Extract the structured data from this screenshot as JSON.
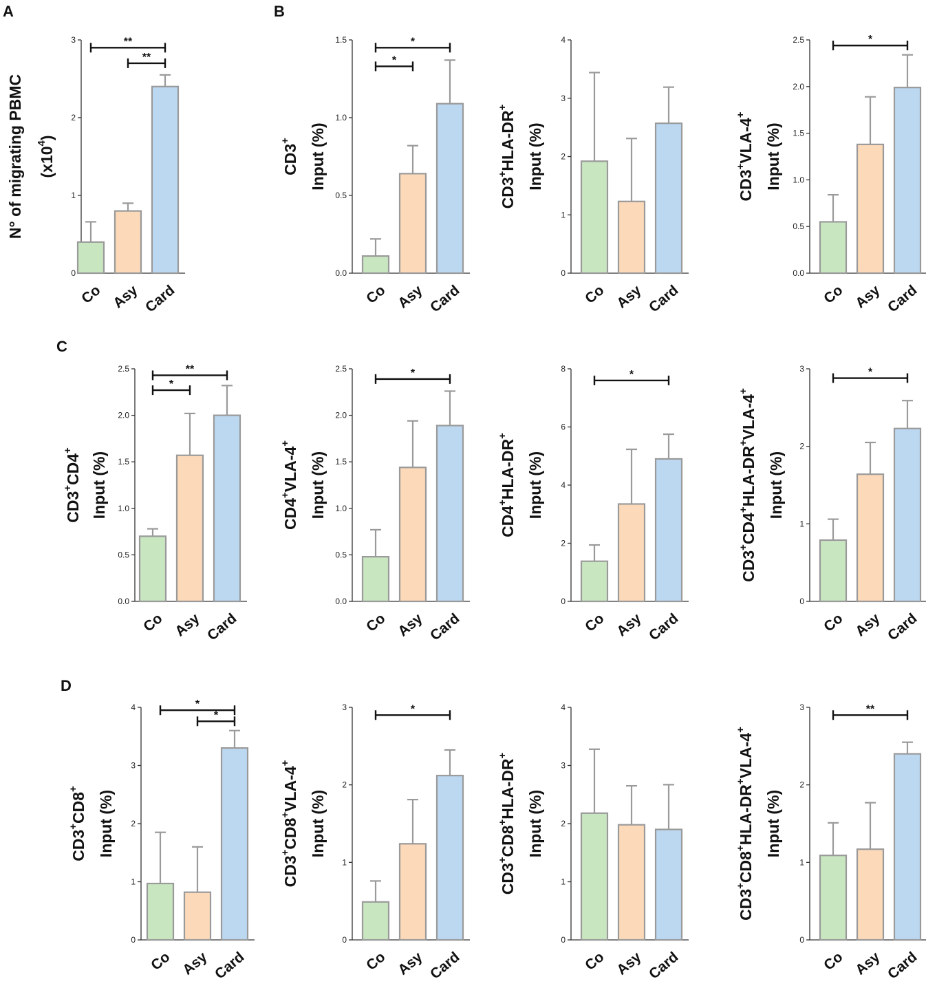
{
  "figure": {
    "panel_letters": [
      "A",
      "B",
      "C",
      "D"
    ],
    "colors": {
      "Co": "#c8e6c0",
      "Asy": "#fbd9b9",
      "Card": "#bcd8f1",
      "bar_edge": "#9a9a9a",
      "error": "#9a9a9a",
      "axis": "#333333",
      "bracket": "#111111"
    }
  },
  "chart_data": [
    {
      "id": "A",
      "type": "bar",
      "panel_letter": "A",
      "categories": [
        "Co",
        "Asy",
        "Card"
      ],
      "values": [
        0.4,
        0.8,
        2.4
      ],
      "errors": [
        0.26,
        0.1,
        0.15
      ],
      "ylabel": [
        "N° of migrating PBMC",
        "(x10^4)"
      ],
      "ylim": [
        0,
        3
      ],
      "ticks": [
        "0",
        "1",
        "2",
        "3"
      ],
      "significance": [
        {
          "from": 0,
          "to": 2,
          "y": 2.9,
          "label": "**"
        },
        {
          "from": 1,
          "to": 2,
          "y": 2.7,
          "label": "**"
        }
      ]
    },
    {
      "id": "B1",
      "type": "bar",
      "panel_letter": "B",
      "categories": [
        "Co",
        "Asy",
        "Card"
      ],
      "values": [
        0.11,
        0.64,
        1.09
      ],
      "errors": [
        0.11,
        0.18,
        0.28
      ],
      "ylabel": [
        "CD3^+",
        "Input (%)"
      ],
      "ylim": [
        0,
        1.5
      ],
      "ticks": [
        "0.0",
        "0.5",
        "1.0",
        "1.5"
      ],
      "significance": [
        {
          "from": 0,
          "to": 2,
          "y": 1.45,
          "label": "*"
        },
        {
          "from": 0,
          "to": 1,
          "y": 1.33,
          "label": "*"
        }
      ]
    },
    {
      "id": "B2",
      "type": "bar",
      "categories": [
        "Co",
        "Asy",
        "Card"
      ],
      "values": [
        1.92,
        1.23,
        2.57
      ],
      "errors": [
        1.52,
        1.08,
        0.62
      ],
      "ylabel": [
        "CD3^+HLA-DR^+",
        "Input (%)"
      ],
      "ylim": [
        0,
        4
      ],
      "ticks": [
        "0",
        "1",
        "2",
        "3",
        "4"
      ],
      "significance": []
    },
    {
      "id": "B3",
      "type": "bar",
      "categories": [
        "Co",
        "Asy",
        "Card"
      ],
      "values": [
        0.55,
        1.38,
        1.99
      ],
      "errors": [
        0.29,
        0.51,
        0.35
      ],
      "ylabel": [
        "CD3^+VLA-4^+",
        "Input (%)"
      ],
      "ylim": [
        0,
        2.5
      ],
      "ticks": [
        "0.0",
        "0.5",
        "1.0",
        "1.5",
        "2.0",
        "2.5"
      ],
      "significance": [
        {
          "from": 0,
          "to": 2,
          "y": 2.44,
          "label": "*"
        }
      ]
    },
    {
      "id": "C1",
      "type": "bar",
      "panel_letter": "C",
      "categories": [
        "Co",
        "Asy",
        "Card"
      ],
      "values": [
        0.7,
        1.57,
        2.0
      ],
      "errors": [
        0.08,
        0.45,
        0.32
      ],
      "ylabel": [
        "CD3^+CD4^+",
        "Input (%)"
      ],
      "ylim": [
        0,
        2.5
      ],
      "ticks": [
        "0.0",
        "0.5",
        "1.0",
        "1.5",
        "2.0",
        "2.5"
      ],
      "significance": [
        {
          "from": 0,
          "to": 2,
          "y": 2.43,
          "label": "**"
        },
        {
          "from": 0,
          "to": 1,
          "y": 2.27,
          "label": "*"
        }
      ]
    },
    {
      "id": "C2",
      "type": "bar",
      "categories": [
        "Co",
        "Asy",
        "Card"
      ],
      "values": [
        0.48,
        1.44,
        1.89
      ],
      "errors": [
        0.29,
        0.5,
        0.37
      ],
      "ylabel": [
        "CD4^+VLA-4^+",
        "Input (%)"
      ],
      "ylim": [
        0,
        2.5
      ],
      "ticks": [
        "0.0",
        "0.5",
        "1.0",
        "1.5",
        "2.0",
        "2.5"
      ],
      "significance": [
        {
          "from": 0,
          "to": 2,
          "y": 2.39,
          "label": "*"
        }
      ]
    },
    {
      "id": "C3",
      "type": "bar",
      "categories": [
        "Co",
        "Asy",
        "Card"
      ],
      "values": [
        1.38,
        3.35,
        4.9
      ],
      "errors": [
        0.56,
        1.88,
        0.85
      ],
      "ylabel": [
        "CD4^+HLA-DR^+",
        "Input (%)"
      ],
      "ylim": [
        0,
        8
      ],
      "ticks": [
        "0",
        "2",
        "4",
        "6",
        "8"
      ],
      "significance": [
        {
          "from": 0,
          "to": 2,
          "y": 7.6,
          "label": "*"
        }
      ]
    },
    {
      "id": "C4",
      "type": "bar",
      "categories": [
        "Co",
        "Asy",
        "Card"
      ],
      "values": [
        0.79,
        1.64,
        2.23
      ],
      "errors": [
        0.27,
        0.41,
        0.36
      ],
      "ylabel": [
        "CD3^+CD4^+HLA-DR^+VLA-4^+",
        "Input (%)"
      ],
      "ylim": [
        0,
        3
      ],
      "ticks": [
        "0",
        "1",
        "2",
        "3"
      ],
      "significance": [
        {
          "from": 0,
          "to": 2,
          "y": 2.88,
          "label": "*"
        }
      ]
    },
    {
      "id": "D1",
      "type": "bar",
      "panel_letter": "D",
      "categories": [
        "Co",
        "Asy",
        "Card"
      ],
      "values": [
        0.97,
        0.82,
        3.3
      ],
      "errors": [
        0.88,
        0.78,
        0.3
      ],
      "ylabel": [
        "CD3^+CD8^+",
        "Input (%)"
      ],
      "ylim": [
        0,
        4
      ],
      "ticks": [
        "0",
        "1",
        "2",
        "3",
        "4"
      ],
      "significance": [
        {
          "from": 0,
          "to": 2,
          "y": 3.95,
          "label": "*"
        },
        {
          "from": 1,
          "to": 2,
          "y": 3.76,
          "label": "*"
        }
      ]
    },
    {
      "id": "D2",
      "type": "bar",
      "categories": [
        "Co",
        "Asy",
        "Card"
      ],
      "values": [
        0.49,
        1.24,
        2.12
      ],
      "errors": [
        0.27,
        0.57,
        0.33
      ],
      "ylabel": [
        "CD3^+CD8^+VLA-4^+",
        "Input (%)"
      ],
      "ylim": [
        0,
        3
      ],
      "ticks": [
        "0",
        "1",
        "2",
        "3"
      ],
      "significance": [
        {
          "from": 0,
          "to": 2,
          "y": 2.9,
          "label": "*"
        }
      ]
    },
    {
      "id": "D3",
      "type": "bar",
      "categories": [
        "Co",
        "Asy",
        "Card"
      ],
      "values": [
        2.18,
        1.98,
        1.9
      ],
      "errors": [
        1.1,
        0.67,
        0.77
      ],
      "ylabel": [
        "CD3^+CD8^+HLA-DR^+",
        "Input (%)"
      ],
      "ylim": [
        0,
        4
      ],
      "ticks": [
        "0",
        "1",
        "2",
        "3",
        "4"
      ],
      "significance": []
    },
    {
      "id": "D4",
      "type": "bar",
      "categories": [
        "Co",
        "Asy",
        "Card"
      ],
      "values": [
        1.09,
        1.17,
        2.4
      ],
      "errors": [
        0.42,
        0.6,
        0.15
      ],
      "ylabel": [
        "CD3^+CD8^+HLA-DR^+VLA-4^+",
        "Input (%)"
      ],
      "ylim": [
        0,
        3
      ],
      "ticks": [
        "0",
        "1",
        "2",
        "3"
      ],
      "significance": [
        {
          "from": 0,
          "to": 2,
          "y": 2.9,
          "label": "**"
        }
      ]
    }
  ]
}
